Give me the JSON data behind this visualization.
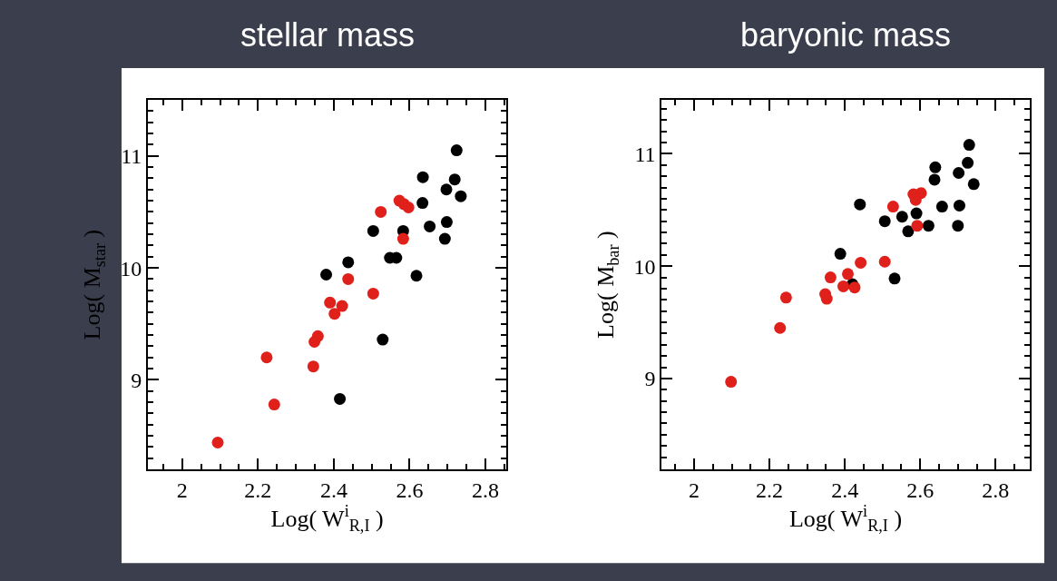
{
  "chart_data": [
    {
      "type": "scatter",
      "title": "stellar mass",
      "xlabel": "Log( W$^{i}$$_{R,I}$ )",
      "ylabel": "Log( M$_{star}$ )",
      "marker": "circle",
      "xlim": [
        1.91,
        2.855
      ],
      "ylim": [
        8.2,
        11.5
      ],
      "xticks": [
        2,
        2.2,
        2.4,
        2.6,
        2.8,
        {
          "value": 1.95,
          "label": null
        },
        {
          "value": 2.05,
          "label": null
        },
        {
          "value": 2.1,
          "label": null
        },
        {
          "value": 2.15,
          "label": null
        },
        {
          "value": 2.25,
          "label": null
        },
        {
          "value": 2.3,
          "label": null
        },
        {
          "value": 2.35,
          "label": null
        },
        {
          "value": 2.45,
          "label": null
        },
        {
          "value": 2.5,
          "label": null
        },
        {
          "value": 2.55,
          "label": null
        },
        {
          "value": 2.65,
          "label": null
        },
        {
          "value": 2.7,
          "label": null
        },
        {
          "value": 2.75,
          "label": null
        },
        {
          "value": 2.85,
          "label": null
        }
      ],
      "yticks": [
        9,
        10,
        11,
        {
          "value": 8.3,
          "label": null
        },
        {
          "value": 8.4,
          "label": null
        },
        {
          "value": 8.5,
          "label": null
        },
        {
          "value": 8.6,
          "label": null
        },
        {
          "value": 8.7,
          "label": null
        },
        {
          "value": 8.8,
          "label": null
        },
        {
          "value": 8.9,
          "label": null
        },
        {
          "value": 9.1,
          "label": null
        },
        {
          "value": 9.2,
          "label": null
        },
        {
          "value": 9.3,
          "label": null
        },
        {
          "value": 9.4,
          "label": null
        },
        {
          "value": 9.5,
          "label": null
        },
        {
          "value": 9.6,
          "label": null
        },
        {
          "value": 9.7,
          "label": null
        },
        {
          "value": 9.8,
          "label": null
        },
        {
          "value": 9.9,
          "label": null
        },
        {
          "value": 10.1,
          "label": null
        },
        {
          "value": 10.2,
          "label": null
        },
        {
          "value": 10.3,
          "label": null
        },
        {
          "value": 10.4,
          "label": null
        },
        {
          "value": 10.5,
          "label": null
        },
        {
          "value": 10.6,
          "label": null
        },
        {
          "value": 10.7,
          "label": null
        },
        {
          "value": 10.8,
          "label": null
        },
        {
          "value": 10.9,
          "label": null
        },
        {
          "value": 11.1,
          "label": null
        },
        {
          "value": 11.2,
          "label": null
        },
        {
          "value": 11.3,
          "label": null
        },
        {
          "value": 11.4,
          "label": null
        }
      ],
      "series": [
        {
          "color": "#000000",
          "x": [
            2.724,
            2.635,
            2.719,
            2.697,
            2.735,
            2.634,
            2.653,
            2.698,
            2.693,
            2.504,
            2.583,
            2.438,
            2.38,
            2.548,
            2.565,
            2.618,
            2.529,
            2.416
          ],
          "values": [
            11.05,
            10.81,
            10.79,
            10.7,
            10.64,
            10.58,
            10.37,
            10.41,
            10.26,
            10.33,
            10.33,
            10.05,
            9.94,
            10.09,
            10.09,
            9.93,
            9.36,
            8.83
          ]
        },
        {
          "color": "#e0201b",
          "x": [
            2.524,
            2.573,
            2.585,
            2.597,
            2.583,
            2.438,
            2.504,
            2.39,
            2.422,
            2.402,
            2.358,
            2.349,
            2.223,
            2.346,
            2.243,
            2.094
          ],
          "values": [
            10.5,
            10.6,
            10.57,
            10.54,
            10.26,
            9.9,
            9.77,
            9.69,
            9.66,
            9.59,
            9.39,
            9.34,
            9.2,
            9.12,
            8.78,
            8.44
          ]
        }
      ]
    },
    {
      "type": "scatter",
      "title": "baryonic mass",
      "xlabel": "Log( W$^{i}$$_{R,I}$ )",
      "ylabel": "Log( M$_{bar}$ )",
      "marker": "circle",
      "xlim": [
        1.914,
        2.89
      ],
      "ylim": [
        8.19,
        11.48
      ],
      "xticks": [
        2,
        2.2,
        2.4,
        2.6,
        2.8,
        {
          "value": 1.95,
          "label": null
        },
        {
          "value": 2.05,
          "label": null
        },
        {
          "value": 2.1,
          "label": null
        },
        {
          "value": 2.15,
          "label": null
        },
        {
          "value": 2.25,
          "label": null
        },
        {
          "value": 2.3,
          "label": null
        },
        {
          "value": 2.35,
          "label": null
        },
        {
          "value": 2.45,
          "label": null
        },
        {
          "value": 2.5,
          "label": null
        },
        {
          "value": 2.55,
          "label": null
        },
        {
          "value": 2.65,
          "label": null
        },
        {
          "value": 2.7,
          "label": null
        },
        {
          "value": 2.75,
          "label": null
        },
        {
          "value": 2.85,
          "label": null
        }
      ],
      "yticks": [
        9,
        10,
        11,
        {
          "value": 8.3,
          "label": null
        },
        {
          "value": 8.4,
          "label": null
        },
        {
          "value": 8.5,
          "label": null
        },
        {
          "value": 8.6,
          "label": null
        },
        {
          "value": 8.7,
          "label": null
        },
        {
          "value": 8.8,
          "label": null
        },
        {
          "value": 8.9,
          "label": null
        },
        {
          "value": 9.1,
          "label": null
        },
        {
          "value": 9.2,
          "label": null
        },
        {
          "value": 9.3,
          "label": null
        },
        {
          "value": 9.4,
          "label": null
        },
        {
          "value": 9.5,
          "label": null
        },
        {
          "value": 9.6,
          "label": null
        },
        {
          "value": 9.7,
          "label": null
        },
        {
          "value": 9.8,
          "label": null
        },
        {
          "value": 9.9,
          "label": null
        },
        {
          "value": 10.1,
          "label": null
        },
        {
          "value": 10.2,
          "label": null
        },
        {
          "value": 10.3,
          "label": null
        },
        {
          "value": 10.4,
          "label": null
        },
        {
          "value": 10.5,
          "label": null
        },
        {
          "value": 10.6,
          "label": null
        },
        {
          "value": 10.7,
          "label": null
        },
        {
          "value": 10.8,
          "label": null
        },
        {
          "value": 10.9,
          "label": null
        },
        {
          "value": 11.1,
          "label": null
        },
        {
          "value": 11.2,
          "label": null
        },
        {
          "value": 11.3,
          "label": null
        },
        {
          "value": 11.4,
          "label": null
        }
      ],
      "series": [
        {
          "color": "#000000",
          "x": [
            2.73,
            2.726,
            2.64,
            2.702,
            2.638,
            2.742,
            2.44,
            2.658,
            2.704,
            2.59,
            2.552,
            2.506,
            2.622,
            2.7,
            2.568,
            2.388,
            2.532,
            2.42
          ],
          "values": [
            11.08,
            10.92,
            10.88,
            10.83,
            10.77,
            10.73,
            10.55,
            10.53,
            10.54,
            10.47,
            10.44,
            10.4,
            10.36,
            10.36,
            10.31,
            10.11,
            9.89,
            9.84
          ]
        },
        {
          "color": "#e0201b",
          "x": [
            2.582,
            2.602,
            2.588,
            2.528,
            2.592,
            2.442,
            2.506,
            2.408,
            2.362,
            2.396,
            2.426,
            2.348,
            2.352,
            2.244,
            2.228,
            2.098
          ],
          "values": [
            10.64,
            10.65,
            10.59,
            10.53,
            10.36,
            10.03,
            10.04,
            9.93,
            9.9,
            9.82,
            9.81,
            9.75,
            9.71,
            9.72,
            9.45,
            8.97
          ]
        }
      ]
    }
  ]
}
